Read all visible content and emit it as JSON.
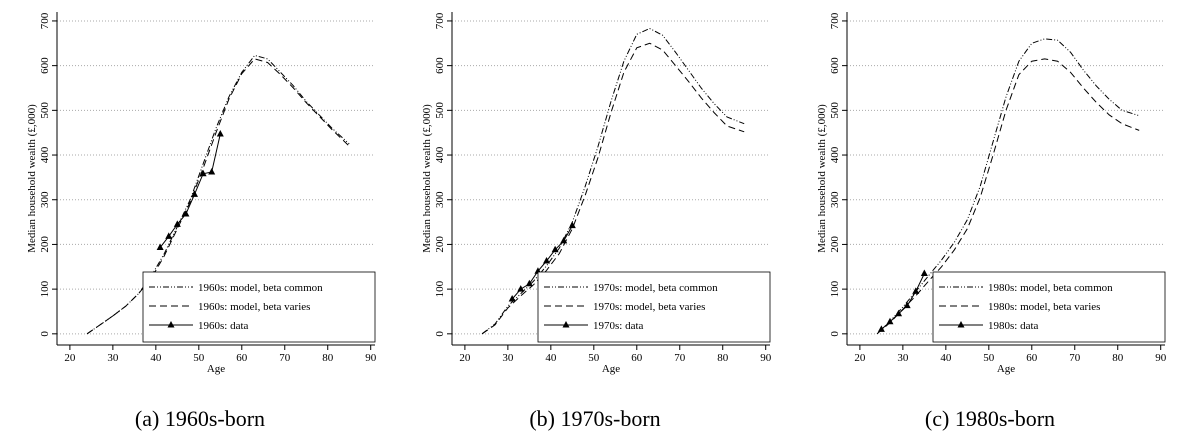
{
  "chart_data": [
    {
      "type": "line",
      "caption": "(a) 1960s-born",
      "ylabel": "Median household wealth (£,000)",
      "xlabel": "Age",
      "xlim": [
        17,
        91
      ],
      "xticks": [
        20,
        30,
        40,
        50,
        60,
        70,
        80,
        90
      ],
      "ylim": [
        -25,
        720
      ],
      "yticks": [
        0,
        100,
        200,
        300,
        400,
        500,
        600,
        700
      ],
      "grid": true,
      "legend": "lower-right",
      "series": [
        {
          "name": "1960s: model, beta common",
          "color": "#000000",
          "style": "dash-dot",
          "x": [
            24,
            27,
            30,
            33,
            36,
            39,
            42,
            45,
            48,
            51,
            54,
            57,
            60,
            63,
            66,
            69,
            72,
            75,
            78,
            81,
            85
          ],
          "values": [
            0,
            20,
            40,
            62,
            90,
            130,
            180,
            240,
            300,
            380,
            460,
            530,
            585,
            623,
            615,
            585,
            555,
            520,
            490,
            460,
            425
          ]
        },
        {
          "name": "1960s: model, beta varies",
          "color": "#000000",
          "style": "dashed",
          "x": [
            24,
            27,
            30,
            33,
            36,
            39,
            42,
            45,
            48,
            51,
            54,
            57,
            60,
            63,
            66,
            69,
            72,
            75,
            78,
            81,
            85
          ],
          "values": [
            0,
            20,
            40,
            62,
            90,
            125,
            175,
            235,
            295,
            370,
            450,
            525,
            582,
            615,
            607,
            580,
            550,
            517,
            487,
            457,
            420
          ]
        },
        {
          "name": "1960s: data",
          "color": "#000000",
          "style": "solid-marker",
          "x": [
            41,
            43,
            45,
            47,
            49,
            51,
            53,
            55
          ],
          "values": [
            193,
            218,
            245,
            268,
            312,
            358,
            362,
            447
          ]
        }
      ]
    },
    {
      "type": "line",
      "caption": "(b) 1970s-born",
      "ylabel": "Median household wealth (£,000)",
      "xlabel": "Age",
      "xlim": [
        17,
        91
      ],
      "xticks": [
        20,
        30,
        40,
        50,
        60,
        70,
        80,
        90
      ],
      "ylim": [
        -25,
        720
      ],
      "yticks": [
        0,
        100,
        200,
        300,
        400,
        500,
        600,
        700
      ],
      "grid": true,
      "legend": "lower-right",
      "series": [
        {
          "name": "1970s: model, beta common",
          "color": "#000000",
          "style": "dash-dot",
          "x": [
            24,
            27,
            30,
            33,
            36,
            39,
            42,
            45,
            48,
            51,
            54,
            57,
            60,
            63,
            66,
            69,
            72,
            75,
            78,
            81,
            85
          ],
          "values": [
            0,
            22,
            62,
            90,
            118,
            152,
            192,
            250,
            330,
            420,
            520,
            610,
            670,
            683,
            668,
            630,
            590,
            550,
            515,
            485,
            470
          ]
        },
        {
          "name": "1970s: model, beta varies",
          "color": "#000000",
          "style": "dashed",
          "x": [
            24,
            27,
            30,
            33,
            36,
            39,
            42,
            45,
            48,
            51,
            54,
            57,
            60,
            63,
            66,
            69,
            72,
            75,
            78,
            81,
            85
          ],
          "values": [
            0,
            20,
            58,
            85,
            110,
            142,
            180,
            235,
            310,
            395,
            495,
            585,
            640,
            650,
            635,
            600,
            565,
            528,
            495,
            465,
            452
          ]
        },
        {
          "name": "1970s: data",
          "color": "#000000",
          "style": "solid-marker",
          "x": [
            31,
            33,
            35,
            37,
            39,
            41,
            43,
            45
          ],
          "values": [
            78,
            100,
            112,
            140,
            163,
            188,
            208,
            242
          ]
        }
      ]
    },
    {
      "type": "line",
      "caption": "(c) 1980s-born",
      "ylabel": "Median household wealth (£,000)",
      "xlabel": "Age",
      "xlim": [
        17,
        91
      ],
      "xticks": [
        20,
        30,
        40,
        50,
        60,
        70,
        80,
        90
      ],
      "ylim": [
        -25,
        720
      ],
      "yticks": [
        0,
        100,
        200,
        300,
        400,
        500,
        600,
        700
      ],
      "grid": true,
      "legend": "lower-right",
      "series": [
        {
          "name": "1980s: model, beta common",
          "color": "#000000",
          "style": "dash-dot",
          "x": [
            24,
            27,
            30,
            33,
            36,
            39,
            42,
            45,
            48,
            51,
            54,
            57,
            60,
            63,
            66,
            69,
            72,
            75,
            78,
            81,
            85
          ],
          "values": [
            0,
            28,
            60,
            95,
            130,
            165,
            205,
            255,
            330,
            430,
            530,
            610,
            650,
            660,
            657,
            630,
            590,
            555,
            525,
            500,
            488
          ]
        },
        {
          "name": "1980s: model, beta varies",
          "color": "#000000",
          "style": "dashed",
          "x": [
            24,
            27,
            30,
            33,
            36,
            39,
            42,
            45,
            48,
            51,
            54,
            57,
            60,
            63,
            66,
            69,
            72,
            75,
            78,
            81,
            85
          ],
          "values": [
            0,
            25,
            55,
            85,
            118,
            150,
            188,
            235,
            305,
            400,
            500,
            580,
            610,
            615,
            610,
            585,
            550,
            518,
            490,
            470,
            455
          ]
        },
        {
          "name": "1980s: data",
          "color": "#000000",
          "style": "solid-marker",
          "x": [
            25,
            27,
            29,
            31,
            33,
            35
          ],
          "values": [
            10,
            27,
            45,
            63,
            95,
            135
          ]
        }
      ]
    }
  ]
}
